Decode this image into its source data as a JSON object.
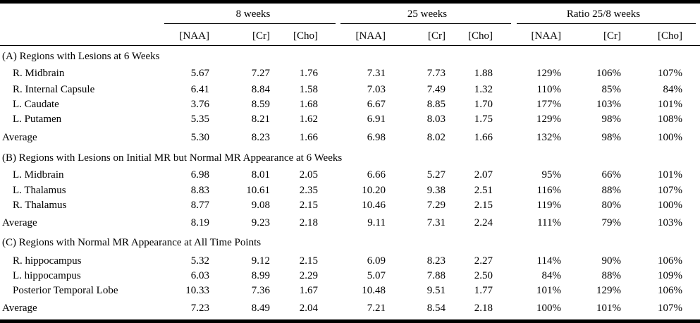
{
  "table": {
    "column_groups": [
      "8 weeks",
      "25 weeks",
      "Ratio 25/8 weeks"
    ],
    "columns": [
      "[NAA]",
      "[Cr]",
      "[Cho]",
      "[NAA]",
      "[Cr]",
      "[Cho]",
      "[NAA]",
      "[Cr]",
      "[Cho]"
    ],
    "sections": [
      {
        "title": "(A) Regions with Lesions at 6 Weeks",
        "rows": [
          {
            "label": "R. Midbrain",
            "values": [
              "5.67",
              "7.27",
              "1.76",
              "7.31",
              "7.73",
              "1.88",
              "129%",
              "106%",
              "107%"
            ]
          },
          {
            "label": "R. Internal Capsule",
            "values": [
              "6.41",
              "8.84",
              "1.58",
              "7.03",
              "7.49",
              "1.32",
              "110%",
              "85%",
              "84%"
            ]
          },
          {
            "label": "L. Caudate",
            "values": [
              "3.76",
              "8.59",
              "1.68",
              "6.67",
              "8.85",
              "1.70",
              "177%",
              "103%",
              "101%"
            ]
          },
          {
            "label": "L. Putamen",
            "values": [
              "5.35",
              "8.21",
              "1.62",
              "6.91",
              "8.03",
              "1.75",
              "129%",
              "98%",
              "108%"
            ]
          }
        ],
        "average": {
          "label": "Average",
          "values": [
            "5.30",
            "8.23",
            "1.66",
            "6.98",
            "8.02",
            "1.66",
            "132%",
            "98%",
            "100%"
          ]
        }
      },
      {
        "title": "(B) Regions with Lesions on Initial MR but Normal MR Appearance at 6 Weeks",
        "rows": [
          {
            "label": "L. Midbrain",
            "values": [
              "6.98",
              "8.01",
              "2.05",
              "6.66",
              "5.27",
              "2.07",
              "95%",
              "66%",
              "101%"
            ]
          },
          {
            "label": "L. Thalamus",
            "values": [
              "8.83",
              "10.61",
              "2.35",
              "10.20",
              "9.38",
              "2.51",
              "116%",
              "88%",
              "107%"
            ]
          },
          {
            "label": "R. Thalamus",
            "values": [
              "8.77",
              "9.08",
              "2.15",
              "10.46",
              "7.29",
              "2.15",
              "119%",
              "80%",
              "100%"
            ]
          }
        ],
        "average": {
          "label": "Average",
          "values": [
            "8.19",
            "9.23",
            "2.18",
            "9.11",
            "7.31",
            "2.24",
            "111%",
            "79%",
            "103%"
          ]
        }
      },
      {
        "title": "(C) Regions with Normal MR Appearance at All Time Points",
        "rows": [
          {
            "label": "R. hippocampus",
            "values": [
              "5.32",
              "9.12",
              "2.15",
              "6.09",
              "8.23",
              "2.27",
              "114%",
              "90%",
              "106%"
            ]
          },
          {
            "label": "L. hippocampus",
            "values": [
              "6.03",
              "8.99",
              "2.29",
              "5.07",
              "7.88",
              "2.50",
              "84%",
              "88%",
              "109%"
            ]
          },
          {
            "label": "Posterior Temporal Lobe",
            "values": [
              "10.33",
              "7.36",
              "1.67",
              "10.48",
              "9.51",
              "1.77",
              "101%",
              "129%",
              "106%"
            ]
          }
        ],
        "average": {
          "label": "Average",
          "values": [
            "7.23",
            "8.49",
            "2.04",
            "7.21",
            "8.54",
            "2.18",
            "100%",
            "101%",
            "107%"
          ]
        }
      }
    ]
  }
}
